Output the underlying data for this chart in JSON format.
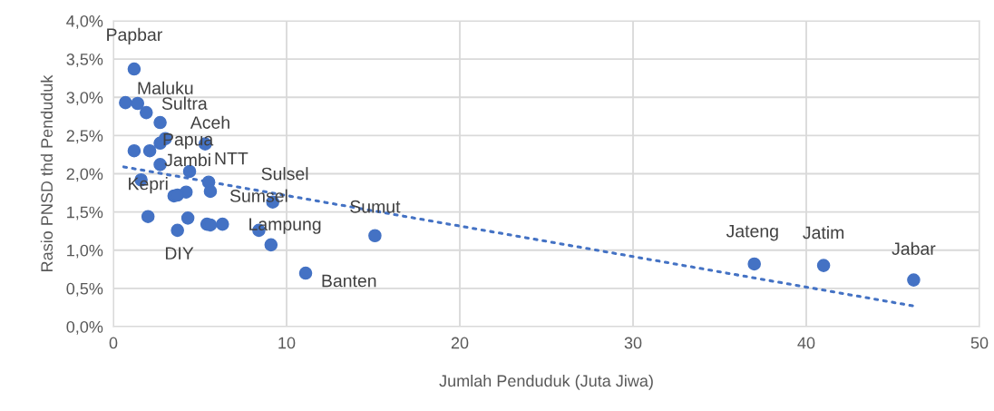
{
  "chart_data": {
    "type": "scatter",
    "xlabel": "Jumlah Penduduk (Juta Jiwa)",
    "ylabel": "Rasio PNSD thd Penduduk",
    "xlim": [
      0,
      50
    ],
    "xticks": [
      0,
      10,
      20,
      30,
      40,
      50
    ],
    "ylim": [
      0,
      4
    ],
    "yticks": [
      {
        "value": 0,
        "label": "0,0%"
      },
      {
        "value": 0.5,
        "label": "0,5%"
      },
      {
        "value": 1,
        "label": "1,0%"
      },
      {
        "value": 1.5,
        "label": "1,5%"
      },
      {
        "value": 2,
        "label": "2,0%"
      },
      {
        "value": 2.5,
        "label": "2,5%"
      },
      {
        "value": 3,
        "label": "3,0%"
      },
      {
        "value": 3.5,
        "label": "3,5%"
      },
      {
        "value": 4,
        "label": "4,0%"
      }
    ],
    "grid": true,
    "marker": "circle",
    "legend": false,
    "series": [
      {
        "color": "#4472c4",
        "x": [
          1.2,
          0.7,
          1.4,
          1.9,
          2.7,
          3.0,
          2.7,
          5.3,
          1.2,
          2.1,
          2.7,
          4.4,
          5.5,
          5.6,
          1.6,
          4.2,
          3.5,
          3.7,
          9.2,
          2.0,
          4.3,
          3.7,
          5.4,
          5.6,
          6.3,
          8.4,
          9.1,
          11.1,
          15.1,
          37.0,
          41.0,
          46.2
        ],
        "values": [
          3.37,
          2.93,
          2.92,
          2.8,
          2.67,
          2.46,
          2.4,
          2.39,
          2.3,
          2.3,
          2.12,
          2.03,
          1.89,
          1.77,
          1.92,
          1.76,
          1.71,
          1.72,
          1.63,
          1.44,
          1.42,
          1.26,
          1.34,
          1.33,
          1.34,
          1.26,
          1.07,
          0.7,
          1.19,
          0.82,
          0.8,
          0.61
        ]
      },
      {
        "type": "line",
        "color": "#4472c4",
        "line_style": "dotted",
        "marker": "none",
        "x": [
          0.6,
          46.2
        ],
        "values": [
          2.09,
          0.27
        ]
      }
    ],
    "annotations": [
      {
        "text": "Papbar",
        "x": 1.2,
        "y": 3.37
      },
      {
        "text": "Maluku",
        "x": 1.4,
        "y": 2.92
      },
      {
        "text": "Sultra",
        "x": 1.9,
        "y": 2.8
      },
      {
        "text": "Aceh",
        "x": 5.3,
        "y": 2.39
      },
      {
        "text": "Papua",
        "x": 3.0,
        "y": 2.46
      },
      {
        "text": "Jambi",
        "x": 2.7,
        "y": 2.12
      },
      {
        "text": "NTT",
        "x": 4.4,
        "y": 2.03
      },
      {
        "text": "Kepri",
        "x": 1.6,
        "y": 1.92
      },
      {
        "text": "Sulsel",
        "x": 9.2,
        "y": 1.63
      },
      {
        "text": "Sumsel",
        "x": 5.6,
        "y": 1.77
      },
      {
        "text": "Sumut",
        "x": 15.1,
        "y": 1.19
      },
      {
        "text": "Lampung",
        "x": 8.4,
        "y": 1.26
      },
      {
        "text": "DIY",
        "x": 3.7,
        "y": 1.26
      },
      {
        "text": "Banten",
        "x": 11.1,
        "y": 0.7
      },
      {
        "text": "Jateng",
        "x": 37.0,
        "y": 0.82
      },
      {
        "text": "Jatim",
        "x": 41.0,
        "y": 0.8
      },
      {
        "text": "Jabar",
        "x": 46.2,
        "y": 0.61
      }
    ]
  }
}
